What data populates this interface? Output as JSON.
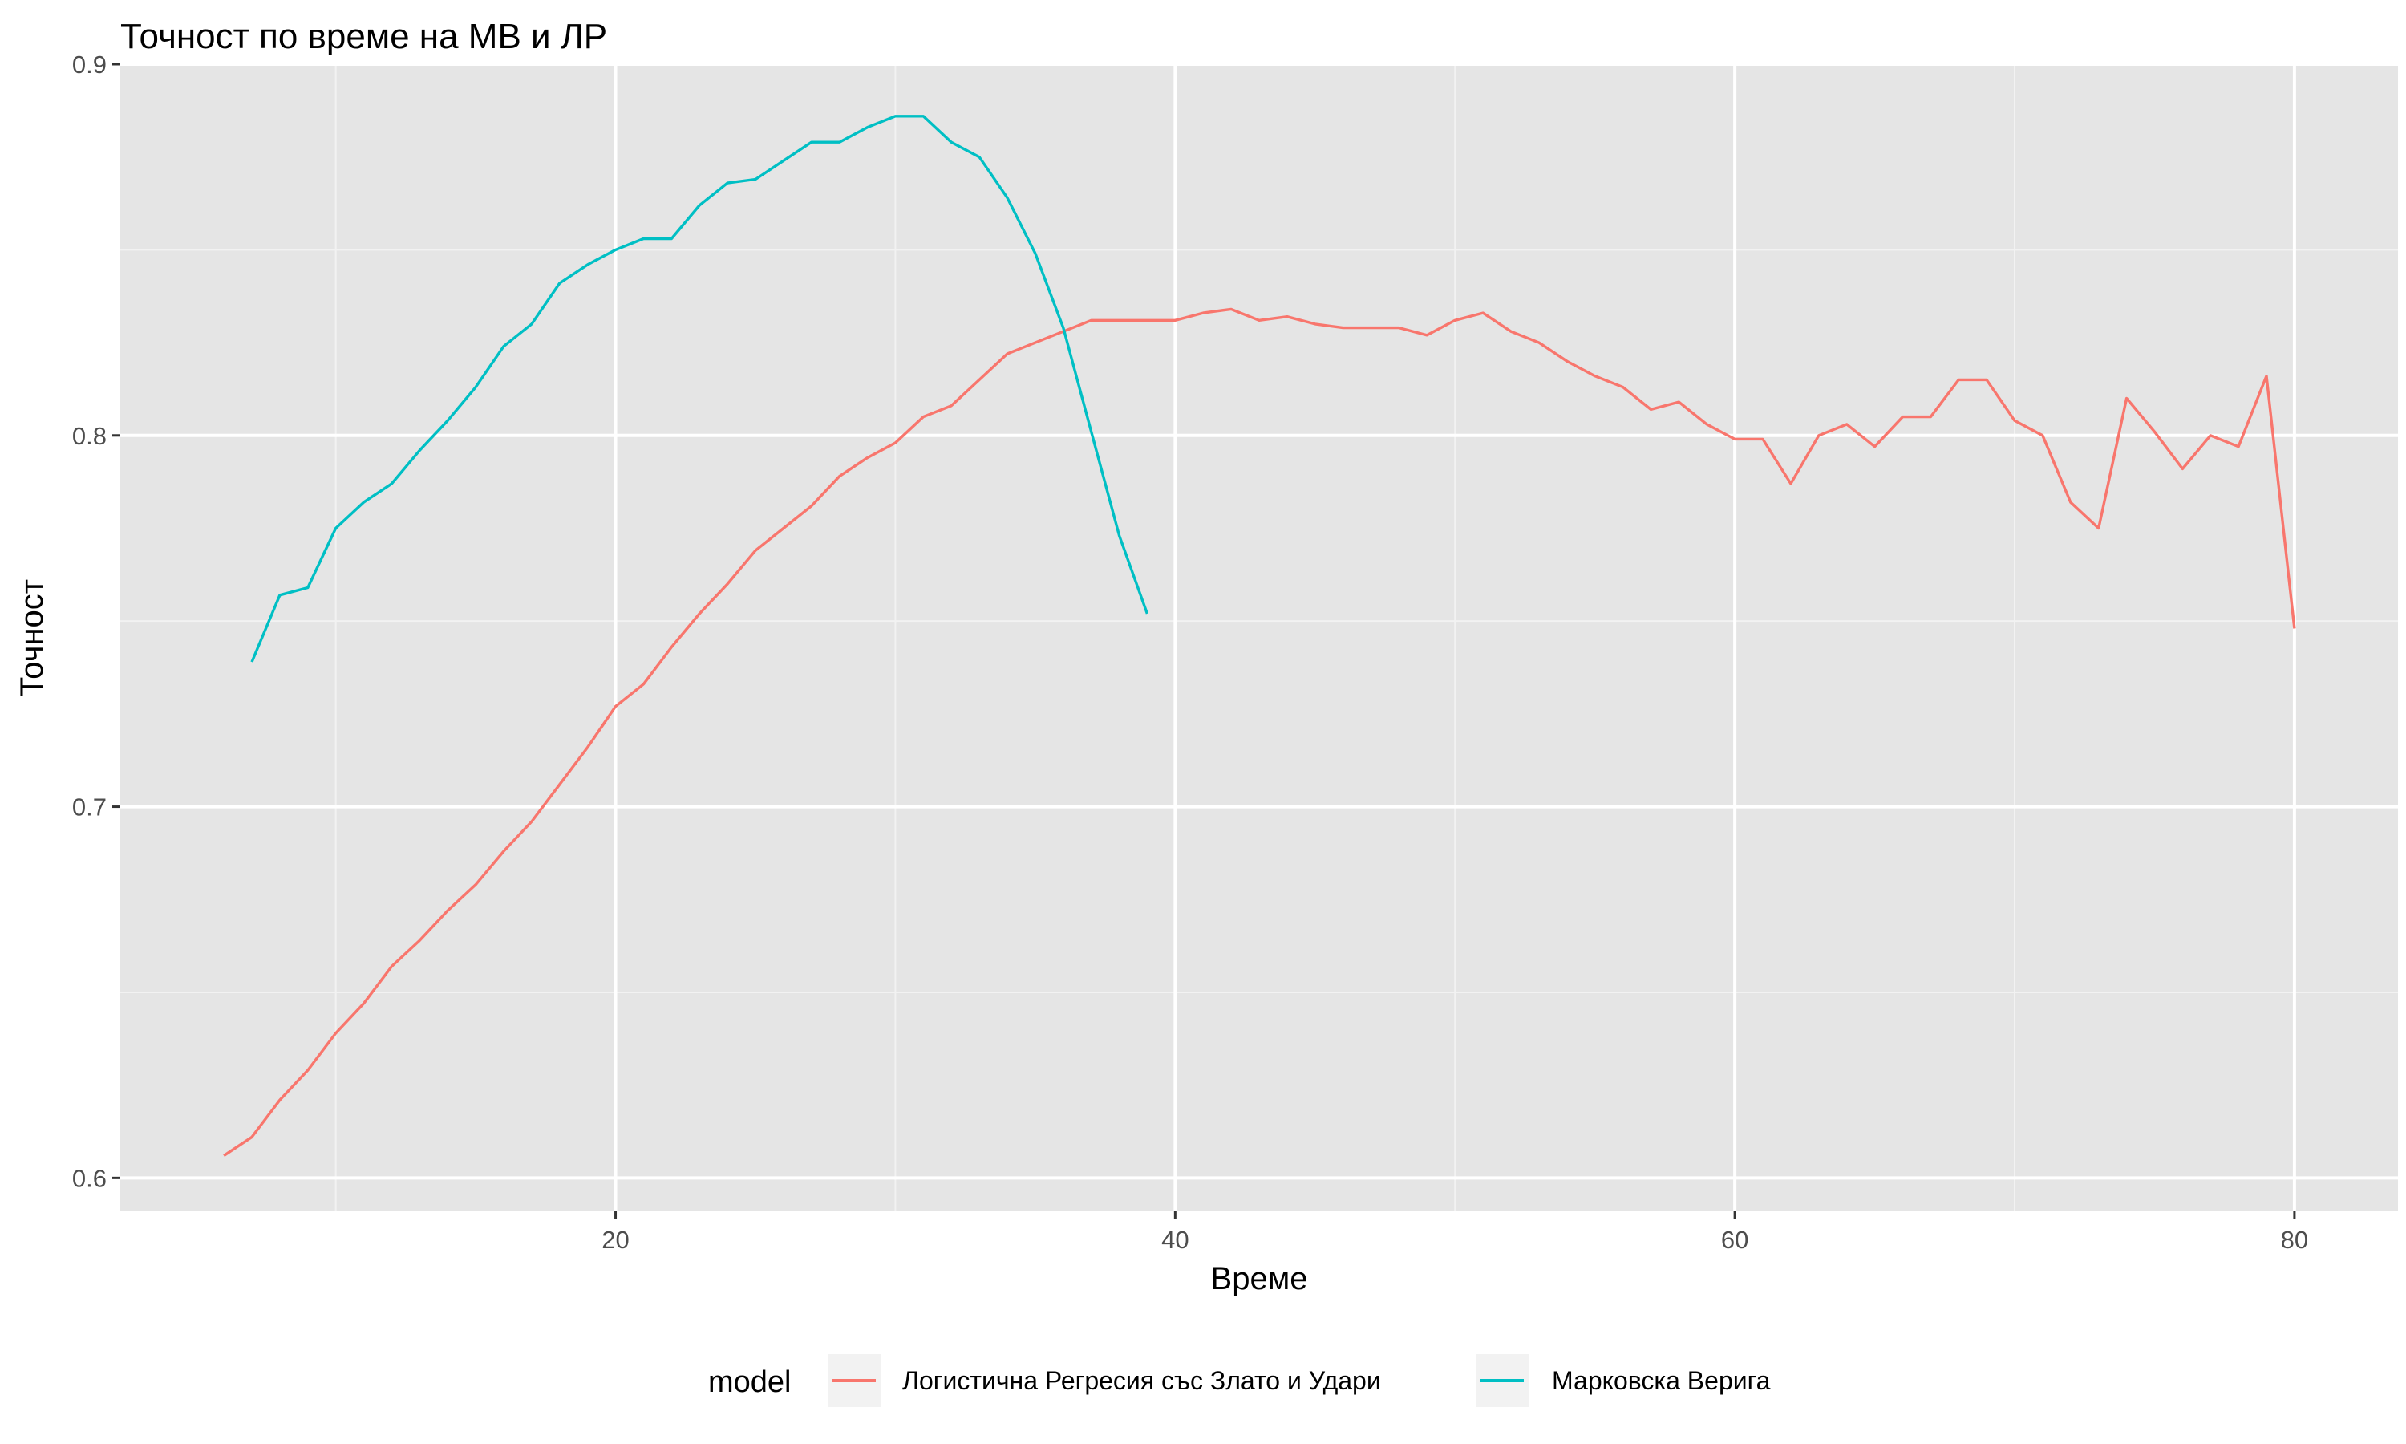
{
  "chart_data": {
    "type": "line",
    "title": "Точност по време на МВ и ЛР",
    "xlabel": "Време",
    "ylabel": "Точност",
    "xlim": [
      2.3,
      83.7
    ],
    "ylim": [
      0.591,
      0.9
    ],
    "x_ticks": [
      20,
      40,
      60,
      80
    ],
    "x_tick_labels": [
      "20",
      "40",
      "60",
      "80"
    ],
    "y_ticks": [
      0.6,
      0.7,
      0.8,
      0.9
    ],
    "y_tick_labels": [
      "0.6",
      "0.7",
      "0.8",
      "0.9"
    ],
    "grid": true,
    "legend_position": "bottom",
    "legend_title": "model",
    "series": [
      {
        "name": "Логистична Регресия със Злато и Удари",
        "color": "#F8766D",
        "x": [
          6,
          7,
          8,
          9,
          10,
          11,
          12,
          13,
          14,
          15,
          16,
          17,
          18,
          19,
          20,
          21,
          22,
          23,
          24,
          25,
          26,
          27,
          28,
          29,
          30,
          31,
          32,
          33,
          34,
          35,
          36,
          37,
          38,
          39,
          40,
          41,
          42,
          43,
          44,
          45,
          46,
          47,
          48,
          49,
          50,
          51,
          52,
          53,
          54,
          55,
          56,
          57,
          58,
          59,
          60,
          61,
          62,
          63,
          64,
          65,
          66,
          67,
          68,
          69,
          70,
          71,
          72,
          73,
          74,
          75,
          76,
          77,
          78,
          79,
          80
        ],
        "y": [
          0.606,
          0.611,
          0.621,
          0.629,
          0.639,
          0.647,
          0.657,
          0.664,
          0.672,
          0.679,
          0.688,
          0.696,
          0.706,
          0.716,
          0.727,
          0.733,
          0.743,
          0.752,
          0.76,
          0.769,
          0.775,
          0.781,
          0.789,
          0.794,
          0.798,
          0.805,
          0.808,
          0.815,
          0.822,
          0.825,
          0.828,
          0.831,
          0.831,
          0.831,
          0.831,
          0.833,
          0.834,
          0.831,
          0.832,
          0.83,
          0.829,
          0.829,
          0.829,
          0.827,
          0.831,
          0.833,
          0.828,
          0.825,
          0.82,
          0.816,
          0.813,
          0.807,
          0.809,
          0.803,
          0.799,
          0.799,
          0.787,
          0.8,
          0.803,
          0.797,
          0.805,
          0.805,
          0.815,
          0.815,
          0.804,
          0.8,
          0.782,
          0.775,
          0.81,
          0.801,
          0.791,
          0.8,
          0.797,
          0.816,
          0.748
        ]
      },
      {
        "name": "Марковска Верига",
        "color": "#00BFC4",
        "x": [
          7,
          8,
          9,
          10,
          11,
          12,
          13,
          14,
          15,
          16,
          17,
          18,
          19,
          20,
          21,
          22,
          23,
          24,
          25,
          26,
          27,
          28,
          29,
          30,
          31,
          32,
          33,
          34,
          35,
          36,
          37,
          38,
          39
        ],
        "y": [
          0.739,
          0.757,
          0.759,
          0.775,
          0.782,
          0.787,
          0.796,
          0.804,
          0.813,
          0.824,
          0.83,
          0.841,
          0.846,
          0.85,
          0.853,
          0.853,
          0.862,
          0.868,
          0.869,
          0.874,
          0.879,
          0.879,
          0.883,
          0.886,
          0.886,
          0.879,
          0.875,
          0.864,
          0.849,
          0.829,
          0.801,
          0.773,
          0.752
        ]
      }
    ]
  }
}
